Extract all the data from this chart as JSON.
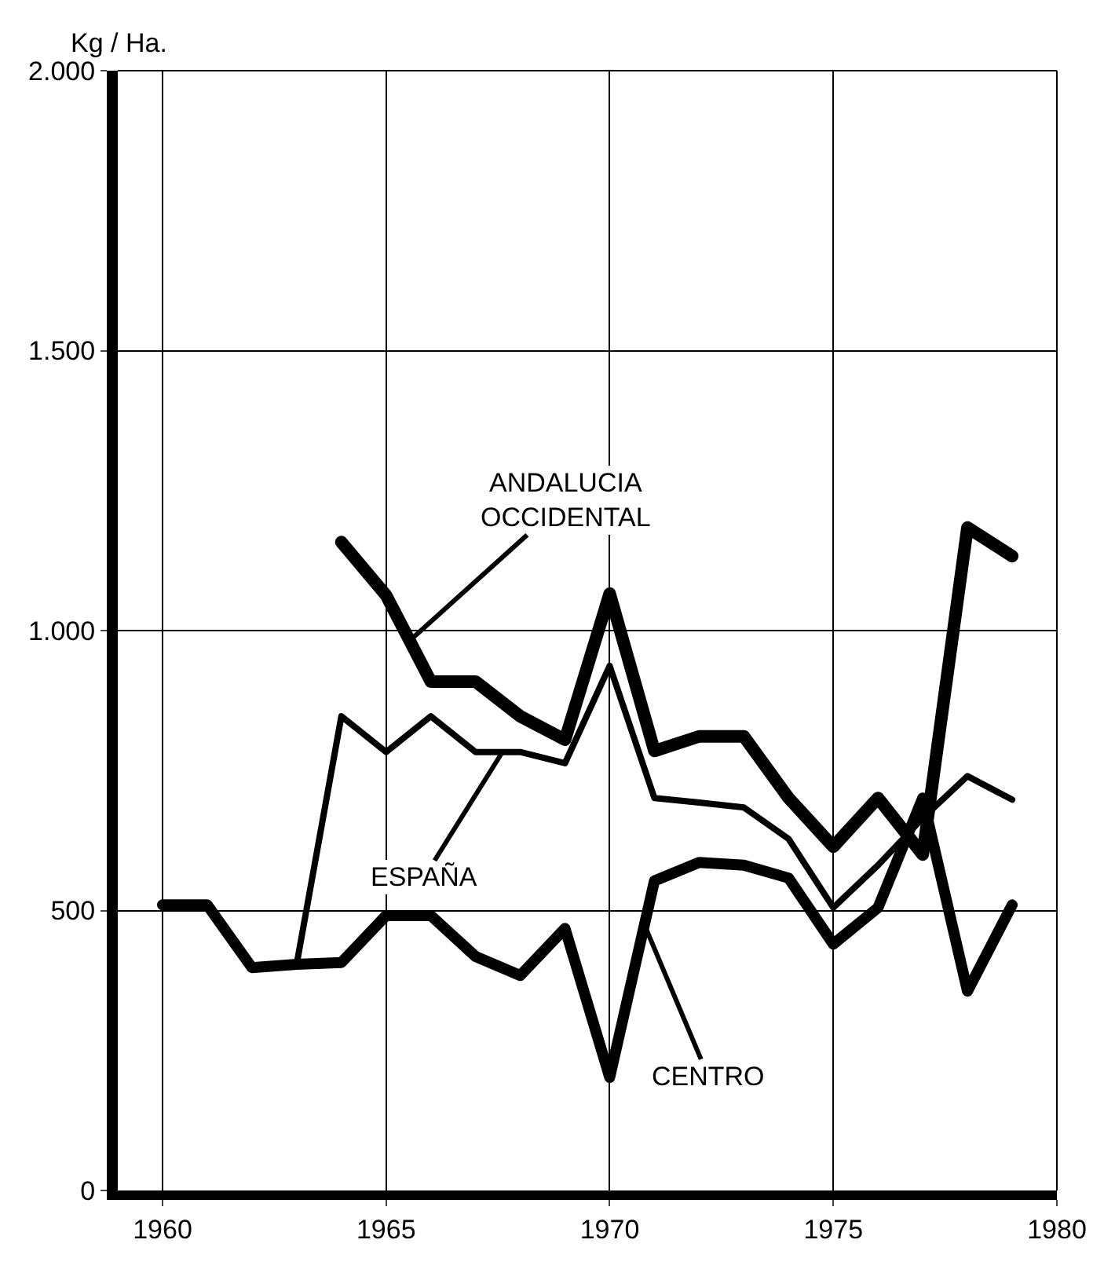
{
  "chart_data": {
    "type": "line",
    "ylabel": "Kg / Ha.",
    "x": [
      1960,
      1961,
      1962,
      1963,
      1964,
      1965,
      1966,
      1967,
      1968,
      1969,
      1970,
      1971,
      1972,
      1973,
      1974,
      1975,
      1976,
      1977,
      1978,
      1979
    ],
    "series": [
      {
        "color": "#000000",
        "values": [
          null,
          null,
          null,
          null,
          1158,
          1063,
          909,
          909,
          847,
          805,
          1066,
          785,
          811,
          811,
          701,
          614,
          701,
          600,
          1184,
          1133
        ]
      },
      {
        "color": "#000000",
        "values": [
          510,
          510,
          398,
          404,
          847,
          783,
          847,
          783,
          783,
          763,
          937,
          701,
          693,
          684,
          628,
          505,
          581,
          665,
          740,
          698
        ]
      },
      {
        "color": "#000000",
        "values": [
          510,
          510,
          398,
          404,
          407,
          491,
          491,
          418,
          384,
          468,
          202,
          553,
          586,
          581,
          558,
          440,
          505,
          701,
          356,
          510
        ]
      }
    ],
    "xlim": [
      1959,
      1980
    ],
    "xticks": [
      1960,
      1965,
      1970,
      1975,
      1980
    ],
    "ylim": [
      0,
      2000
    ],
    "yticks": [
      {
        "value": 0,
        "label": "0"
      },
      {
        "value": 500,
        "label": "500"
      },
      {
        "value": 1000,
        "label": "1.000"
      },
      {
        "value": 1500,
        "label": "1.500"
      },
      {
        "value": 2000,
        "label": "2.000"
      }
    ],
    "grid": true,
    "marker": "none",
    "line_style": "solid",
    "annotations": [
      {
        "text": "ANDALUCIA\nOCCIDENTAL",
        "x": 1965.5,
        "y": 980
      },
      {
        "text": "ESPAÑA",
        "x": 1967.6,
        "y": 783
      },
      {
        "text": "CENTRO",
        "x": 1970.8,
        "y": 470
      }
    ]
  }
}
